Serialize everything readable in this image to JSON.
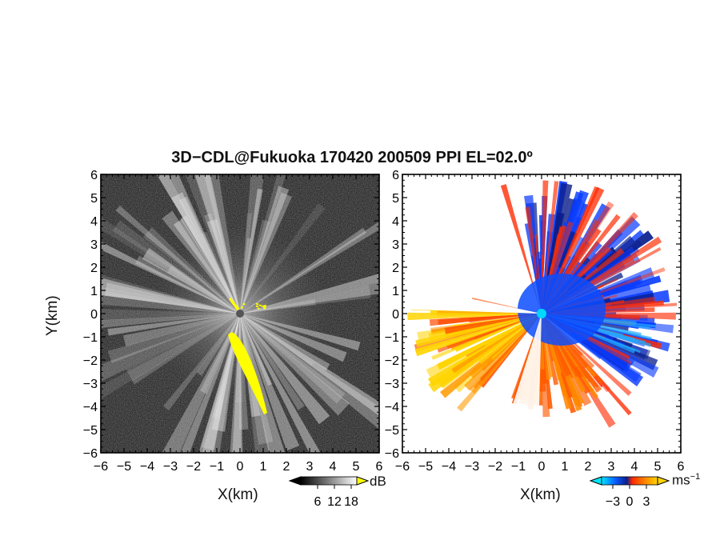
{
  "title": "3D−CDL@Fukuoka 170420 200509 PPI EL=02.0º",
  "chart_data": [
    {
      "type": "heatmap",
      "panel": "left",
      "product": "SNR",
      "xlabel": "X(km)",
      "ylabel": "Y(km)",
      "xlim": [
        -6,
        6
      ],
      "ylim": [
        -6,
        6
      ],
      "xticks": [
        "−6",
        "−5",
        "−4",
        "−3",
        "−2",
        "−1",
        "0",
        "1",
        "2",
        "3",
        "4",
        "5",
        "6"
      ],
      "yticks": [
        "−6",
        "−5",
        "−4",
        "−3",
        "−2",
        "−1",
        "0",
        "1",
        "2",
        "3",
        "4",
        "5",
        "6"
      ],
      "colorbar": {
        "unit": "dB",
        "ticks": [
          "6",
          "12",
          "18"
        ],
        "tick_values": [
          6,
          12,
          18
        ],
        "range": [
          0,
          20
        ],
        "colormap": "grayscale",
        "colors": {
          "low": "#000000",
          "high": "#ffffff",
          "over": "#ffff00"
        }
      },
      "background": "#2a2a2a",
      "feature_color": "#ffff00"
    },
    {
      "type": "heatmap",
      "panel": "right",
      "product": "Doppler velocity",
      "xlabel": "X(km)",
      "ylabel": "",
      "xlim": [
        -6,
        6
      ],
      "ylim": [
        -6,
        6
      ],
      "xticks": [
        "−6",
        "−5",
        "−4",
        "−3",
        "−2",
        "−1",
        "0",
        "1",
        "2",
        "3",
        "4",
        "5",
        "6"
      ],
      "yticks": [
        "−6",
        "−5",
        "−4",
        "−3",
        "−2",
        "−1",
        "0",
        "1",
        "2",
        "3",
        "4",
        "5",
        "6"
      ],
      "colorbar": {
        "unit": "ms",
        "unit_exp": "−1",
        "ticks": [
          "−3",
          "0",
          "3"
        ],
        "tick_values": [
          -3,
          0,
          3
        ],
        "range": [
          -5,
          5
        ],
        "colors": [
          "#00e5ff",
          "#0a5cff",
          "#0a1e8c",
          "#ff2a00",
          "#ff8800",
          "#ffd400"
        ]
      },
      "background": "#ffffff",
      "center_marker_color": "#00d8ff"
    }
  ]
}
